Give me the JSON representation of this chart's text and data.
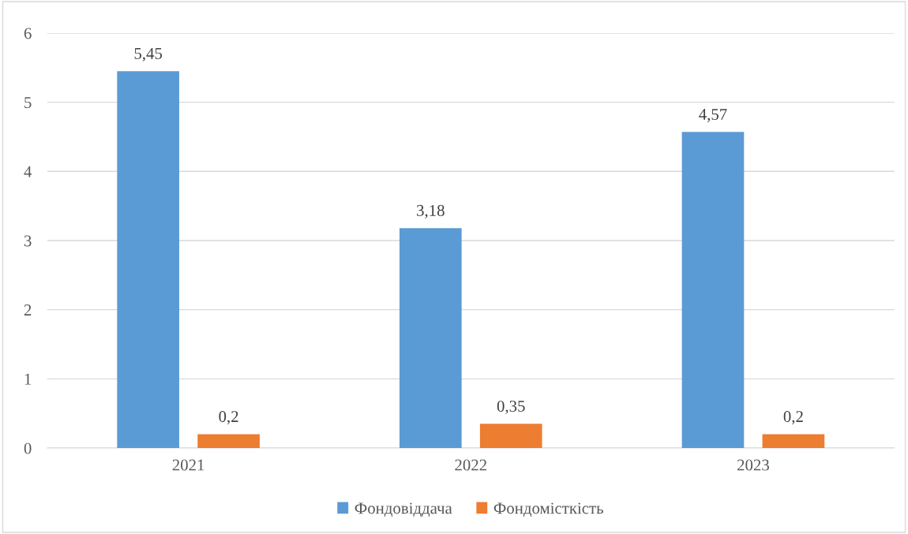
{
  "chart_data": {
    "type": "bar",
    "categories": [
      "2021",
      "2022",
      "2023"
    ],
    "series": [
      {
        "name": "Фондовіддача",
        "color": "#5b9bd5",
        "values": [
          5.45,
          3.18,
          4.57
        ],
        "value_labels": [
          "5,45",
          "3,18",
          "4,57"
        ]
      },
      {
        "name": "Фондомісткість",
        "color": "#ed7d31",
        "values": [
          0.2,
          0.35,
          0.2
        ],
        "value_labels": [
          "0,2",
          "0,35",
          "0,2"
        ]
      }
    ],
    "ylim": [
      0,
      6
    ],
    "yticks": [
      0,
      1,
      2,
      3,
      4,
      5,
      6
    ],
    "grid": "y",
    "legend": "bottom"
  }
}
